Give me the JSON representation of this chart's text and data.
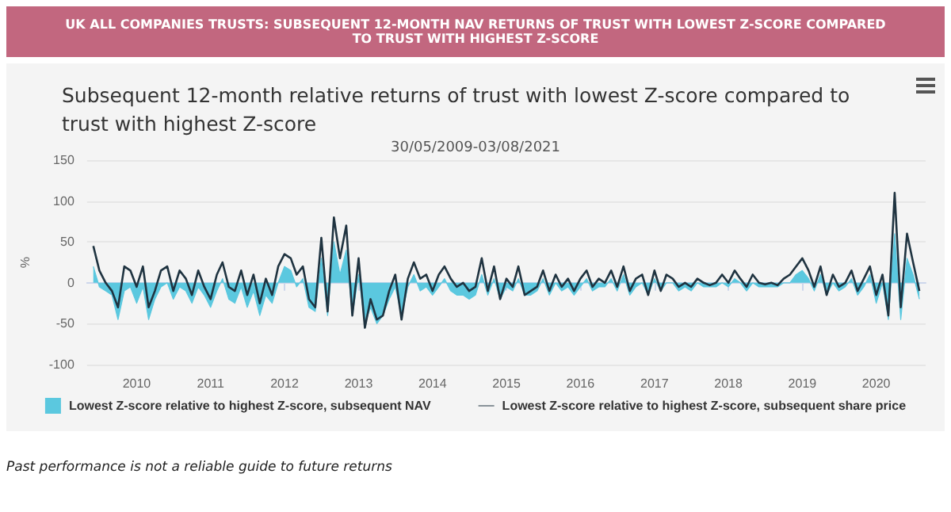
{
  "chart_data": {
    "type": "line",
    "title": "UK ALL COMPANIES TRUSTS: SUBSEQUENT 12-MONTH NAV RETURNS OF TRUST WITH LOWEST Z-SCORE COMPARED TO TRUST WITH HIGHEST Z-SCORE",
    "subtitle": "Subsequent 12-month relative returns of trust with lowest Z-score compared to trust with highest Z-score",
    "ylabel": "%",
    "annotations": [
      "30/05/2009-03/08/2021",
      "Past performance is not a reliable guide to future returns"
    ],
    "x": [
      "2009-06",
      "2009-07",
      "2009-08",
      "2009-09",
      "2009-10",
      "2009-11",
      "2009-12",
      "2010-01",
      "2010-02",
      "2010-03",
      "2010-04",
      "2010-05",
      "2010-06",
      "2010-07",
      "2010-08",
      "2010-09",
      "2010-10",
      "2010-11",
      "2010-12",
      "2011-01",
      "2011-02",
      "2011-03",
      "2011-04",
      "2011-05",
      "2011-06",
      "2011-07",
      "2011-08",
      "2011-09",
      "2011-10",
      "2011-11",
      "2011-12",
      "2012-01",
      "2012-02",
      "2012-03",
      "2012-04",
      "2012-05",
      "2012-06",
      "2012-07",
      "2012-08",
      "2012-09",
      "2012-10",
      "2012-11",
      "2012-12",
      "2013-01",
      "2013-02",
      "2013-03",
      "2013-04",
      "2013-05",
      "2013-06",
      "2013-07",
      "2013-08",
      "2013-09",
      "2013-10",
      "2013-11",
      "2013-12",
      "2014-01",
      "2014-02",
      "2014-03",
      "2014-04",
      "2014-05",
      "2014-06",
      "2014-07",
      "2014-08",
      "2014-09",
      "2014-10",
      "2014-11",
      "2014-12",
      "2015-01",
      "2015-02",
      "2015-03",
      "2015-04",
      "2015-05",
      "2015-06",
      "2015-07",
      "2015-08",
      "2015-09",
      "2015-10",
      "2015-11",
      "2015-12",
      "2016-01",
      "2016-02",
      "2016-03",
      "2016-04",
      "2016-05",
      "2016-06",
      "2016-07",
      "2016-08",
      "2016-09",
      "2016-10",
      "2016-11",
      "2016-12",
      "2017-01",
      "2017-02",
      "2017-03",
      "2017-04",
      "2017-05",
      "2017-06",
      "2017-07",
      "2017-08",
      "2017-09",
      "2017-10",
      "2017-11",
      "2017-12",
      "2018-01",
      "2018-02",
      "2018-03",
      "2018-04",
      "2018-05",
      "2018-06",
      "2018-07",
      "2018-08",
      "2018-09",
      "2018-10",
      "2018-11",
      "2018-12",
      "2019-01",
      "2019-02",
      "2019-03",
      "2019-04",
      "2019-05",
      "2019-06",
      "2019-07",
      "2019-08",
      "2019-09",
      "2019-10",
      "2019-11",
      "2019-12",
      "2020-01",
      "2020-02",
      "2020-03",
      "2020-04",
      "2020-05",
      "2020-06",
      "2020-07",
      "2020-08"
    ],
    "series": [
      {
        "name": "Lowest Z-score relative to highest Z-score, subsequent NAV",
        "type": "area",
        "color": "#5bc8df",
        "values": [
          20,
          -5,
          -10,
          -15,
          -45,
          -10,
          -5,
          -25,
          -5,
          -45,
          -20,
          -5,
          0,
          -20,
          -5,
          -10,
          -25,
          -5,
          -15,
          -30,
          -10,
          5,
          -20,
          -25,
          -5,
          -30,
          -10,
          -40,
          -15,
          -25,
          0,
          20,
          15,
          -5,
          5,
          -30,
          -35,
          30,
          -40,
          50,
          10,
          40,
          -40,
          10,
          -50,
          -30,
          -50,
          -40,
          -20,
          -5,
          -40,
          -5,
          10,
          -10,
          -5,
          -15,
          -5,
          5,
          -10,
          -15,
          -15,
          -20,
          -15,
          10,
          -15,
          5,
          -20,
          -5,
          -10,
          5,
          -15,
          -15,
          -10,
          5,
          -15,
          0,
          -10,
          -5,
          -15,
          -5,
          5,
          -10,
          -5,
          -5,
          5,
          -10,
          10,
          -15,
          -5,
          0,
          -15,
          5,
          -10,
          0,
          0,
          -10,
          -5,
          -10,
          0,
          -5,
          -5,
          -5,
          0,
          -5,
          5,
          0,
          -10,
          0,
          -5,
          -5,
          -5,
          -5,
          0,
          0,
          10,
          15,
          5,
          -10,
          10,
          -15,
          0,
          -10,
          -5,
          5,
          -15,
          -5,
          10,
          -25,
          0,
          -45,
          60,
          -45,
          30,
          10,
          -20
        ]
      },
      {
        "name": "Lowest Z-score relative to highest Z-score, subsequent share price",
        "color": "#1f3340",
        "values": [
          45,
          15,
          0,
          -10,
          -30,
          20,
          15,
          -5,
          20,
          -30,
          -10,
          15,
          20,
          -10,
          15,
          5,
          -15,
          15,
          -5,
          -20,
          10,
          25,
          -5,
          -10,
          15,
          -15,
          10,
          -25,
          5,
          -15,
          20,
          35,
          30,
          10,
          20,
          -20,
          -30,
          55,
          -35,
          80,
          30,
          70,
          -40,
          30,
          -55,
          -20,
          -45,
          -40,
          -10,
          10,
          -45,
          5,
          25,
          5,
          10,
          -10,
          10,
          20,
          5,
          -5,
          0,
          -10,
          -5,
          30,
          -10,
          20,
          -20,
          5,
          -5,
          20,
          -15,
          -10,
          -5,
          15,
          -10,
          10,
          -5,
          5,
          -10,
          5,
          15,
          -5,
          5,
          0,
          15,
          -5,
          20,
          -10,
          5,
          10,
          -15,
          15,
          -10,
          10,
          5,
          -5,
          0,
          -5,
          5,
          0,
          -3,
          0,
          10,
          0,
          15,
          5,
          -5,
          10,
          0,
          -2,
          0,
          -3,
          5,
          10,
          20,
          30,
          15,
          -5,
          20,
          -15,
          10,
          -5,
          0,
          15,
          -10,
          5,
          20,
          -15,
          10,
          -40,
          110,
          -30,
          60,
          25,
          -10
        ]
      }
    ],
    "xlim": [
      "2009-05",
      "2020-09"
    ],
    "xticks": [
      {
        "value": "2010",
        "label": "2010"
      },
      {
        "value": "2011",
        "label": "2011"
      },
      {
        "value": "2012",
        "label": "2012"
      },
      {
        "value": "2013",
        "label": "2013"
      },
      {
        "value": "2014",
        "label": "2014"
      },
      {
        "value": "2015",
        "label": "2015"
      },
      {
        "value": "2016",
        "label": "2016"
      },
      {
        "value": "2017",
        "label": "2017"
      },
      {
        "value": "2018",
        "label": "2018"
      },
      {
        "value": "2019",
        "label": "2019"
      },
      {
        "value": "2020",
        "label": "2020"
      }
    ],
    "ylim": [
      -100,
      150
    ],
    "yticks": [
      -100,
      -50,
      0,
      50,
      100,
      150
    ],
    "grid": "y",
    "legend": "bottom",
    "marker": "none"
  }
}
